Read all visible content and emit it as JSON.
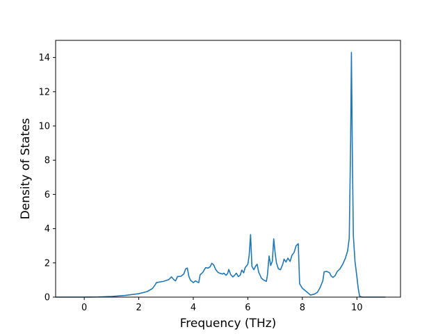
{
  "chart_data": {
    "type": "line",
    "title": "",
    "xlabel": "Frequency (THz)",
    "ylabel": "Density of States",
    "xlim": [
      -1.05,
      11.6
    ],
    "ylim": [
      0,
      15
    ],
    "xticks": [
      0,
      2,
      4,
      6,
      8,
      10
    ],
    "yticks": [
      0,
      2,
      4,
      6,
      8,
      10,
      12,
      14
    ],
    "grid": false,
    "legend": "none",
    "series": [
      {
        "color": "#1f77b4",
        "points": [
          [
            -1.05,
            0
          ],
          [
            -0.5,
            0
          ],
          [
            0,
            0
          ],
          [
            0.5,
            0.01
          ],
          [
            1.0,
            0.04
          ],
          [
            1.5,
            0.1
          ],
          [
            2.0,
            0.2
          ],
          [
            2.3,
            0.32
          ],
          [
            2.5,
            0.5
          ],
          [
            2.6,
            0.72
          ],
          [
            2.65,
            0.85
          ],
          [
            2.9,
            0.92
          ],
          [
            3.1,
            1.02
          ],
          [
            3.2,
            1.18
          ],
          [
            3.3,
            1.0
          ],
          [
            3.35,
            0.95
          ],
          [
            3.42,
            1.2
          ],
          [
            3.55,
            1.22
          ],
          [
            3.65,
            1.35
          ],
          [
            3.72,
            1.65
          ],
          [
            3.78,
            1.7
          ],
          [
            3.84,
            1.2
          ],
          [
            3.9,
            0.98
          ],
          [
            4.0,
            0.85
          ],
          [
            4.08,
            0.95
          ],
          [
            4.15,
            0.88
          ],
          [
            4.2,
            0.85
          ],
          [
            4.25,
            1.3
          ],
          [
            4.35,
            1.45
          ],
          [
            4.45,
            1.72
          ],
          [
            4.55,
            1.7
          ],
          [
            4.62,
            1.78
          ],
          [
            4.68,
            1.98
          ],
          [
            4.75,
            1.88
          ],
          [
            4.82,
            1.62
          ],
          [
            4.9,
            1.45
          ],
          [
            5.0,
            1.38
          ],
          [
            5.08,
            1.35
          ],
          [
            5.12,
            1.4
          ],
          [
            5.2,
            1.28
          ],
          [
            5.26,
            1.38
          ],
          [
            5.3,
            1.62
          ],
          [
            5.37,
            1.32
          ],
          [
            5.45,
            1.18
          ],
          [
            5.5,
            1.25
          ],
          [
            5.58,
            1.4
          ],
          [
            5.65,
            1.2
          ],
          [
            5.72,
            1.28
          ],
          [
            5.78,
            1.58
          ],
          [
            5.85,
            1.42
          ],
          [
            5.9,
            1.72
          ],
          [
            6.0,
            1.92
          ],
          [
            6.05,
            2.45
          ],
          [
            6.1,
            3.65
          ],
          [
            6.15,
            1.8
          ],
          [
            6.22,
            1.6
          ],
          [
            6.3,
            1.85
          ],
          [
            6.34,
            1.92
          ],
          [
            6.4,
            1.45
          ],
          [
            6.5,
            1.1
          ],
          [
            6.6,
            0.98
          ],
          [
            6.68,
            0.92
          ],
          [
            6.72,
            1.3
          ],
          [
            6.78,
            2.4
          ],
          [
            6.84,
            1.85
          ],
          [
            6.9,
            2.1
          ],
          [
            6.95,
            3.4
          ],
          [
            7.0,
            2.6
          ],
          [
            7.05,
            2.0
          ],
          [
            7.12,
            1.65
          ],
          [
            7.2,
            1.6
          ],
          [
            7.28,
            1.92
          ],
          [
            7.33,
            2.22
          ],
          [
            7.4,
            2.05
          ],
          [
            7.47,
            2.28
          ],
          [
            7.55,
            2.08
          ],
          [
            7.62,
            2.45
          ],
          [
            7.7,
            2.62
          ],
          [
            7.77,
            3.0
          ],
          [
            7.85,
            3.12
          ],
          [
            7.9,
            0.78
          ],
          [
            8.0,
            0.52
          ],
          [
            8.15,
            0.32
          ],
          [
            8.3,
            0.12
          ],
          [
            8.45,
            0.18
          ],
          [
            8.55,
            0.28
          ],
          [
            8.65,
            0.55
          ],
          [
            8.75,
            0.95
          ],
          [
            8.8,
            1.48
          ],
          [
            8.9,
            1.5
          ],
          [
            9.0,
            1.42
          ],
          [
            9.05,
            1.25
          ],
          [
            9.12,
            1.15
          ],
          [
            9.2,
            1.25
          ],
          [
            9.28,
            1.5
          ],
          [
            9.38,
            1.65
          ],
          [
            9.48,
            1.92
          ],
          [
            9.58,
            2.28
          ],
          [
            9.66,
            2.7
          ],
          [
            9.72,
            3.45
          ],
          [
            9.77,
            9.0
          ],
          [
            9.8,
            14.3
          ],
          [
            9.83,
            9.0
          ],
          [
            9.87,
            3.6
          ],
          [
            9.93,
            2.1
          ],
          [
            10.0,
            1.2
          ],
          [
            10.05,
            0.5
          ],
          [
            10.1,
            0.05
          ],
          [
            10.2,
            0
          ],
          [
            11.05,
            0
          ]
        ]
      }
    ]
  }
}
